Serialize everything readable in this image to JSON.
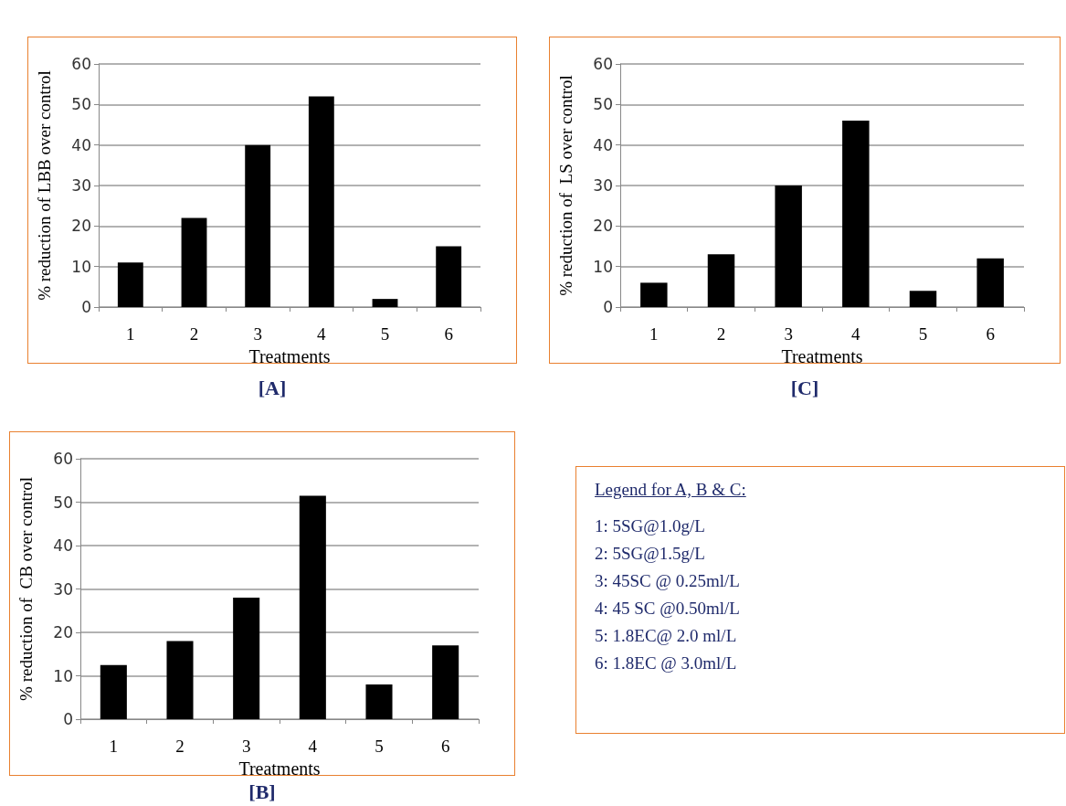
{
  "chart_data": [
    {
      "type": "bar",
      "title": "[A]",
      "xlabel": "Treatments",
      "ylabel": "% reduction of LBB over control",
      "categories": [
        "1",
        "2",
        "3",
        "4",
        "5",
        "6"
      ],
      "series": [
        {
          "color": "#000000",
          "values": [
            11,
            22,
            40,
            52,
            2,
            15
          ]
        }
      ],
      "ylim": [
        0,
        60
      ],
      "yticks": [
        0,
        10,
        20,
        30,
        40,
        50,
        60
      ],
      "grid": "y"
    },
    {
      "type": "bar",
      "title": "[C]",
      "xlabel": "Treatments",
      "ylabel": "% reduction of  LS over control",
      "categories": [
        "1",
        "2",
        "3",
        "4",
        "5",
        "6"
      ],
      "series": [
        {
          "color": "#000000",
          "values": [
            6,
            13,
            30,
            46,
            4,
            12
          ]
        }
      ],
      "ylim": [
        0,
        60
      ],
      "yticks": [
        0,
        10,
        20,
        30,
        40,
        50,
        60
      ],
      "grid": "y"
    },
    {
      "type": "bar",
      "title": "[B]",
      "xlabel": "Treatments",
      "ylabel": "% reduction of  CB over control",
      "categories": [
        "1",
        "2",
        "3",
        "4",
        "5",
        "6"
      ],
      "series": [
        {
          "color": "#000000",
          "values": [
            12.5,
            18,
            28,
            51.5,
            8,
            17
          ]
        }
      ],
      "ylim": [
        0,
        60
      ],
      "yticks": [
        0,
        10,
        20,
        30,
        40,
        50,
        60
      ],
      "grid": "y"
    },
    {
      "type": "other",
      "title": "Legend for A, B & C:",
      "annotations": [
        "1: 5SG@1.0g/L",
        "2: 5SG@1.5g/L",
        "3: 45SC @ 0.25ml/L",
        "4: 45 SC @0.50ml/L",
        "5: 1.8EC@ 2.0 ml/L",
        "6: 1.8EC @ 3.0ml/L"
      ]
    }
  ]
}
